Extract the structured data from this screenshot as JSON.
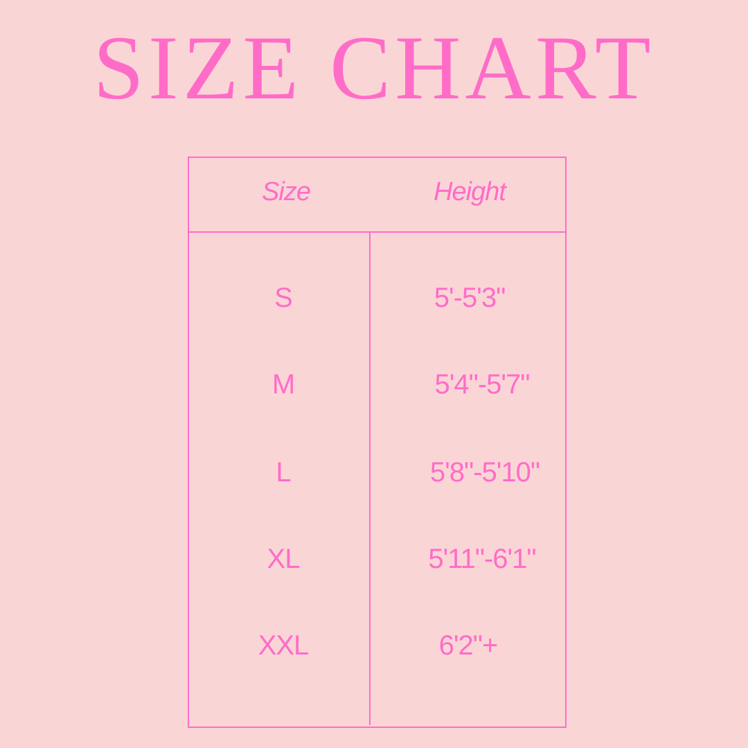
{
  "title": "SIZE CHART",
  "colors": {
    "background": "#fad5d6",
    "accent": "#ff6cc8"
  },
  "table": {
    "headers": [
      "Size",
      "Height"
    ],
    "rows": [
      {
        "size": "S",
        "height": "5'-5'3\""
      },
      {
        "size": "M",
        "height": "5'4\"-5'7\""
      },
      {
        "size": "L",
        "height": "5'8\"-5'10\""
      },
      {
        "size": "XL",
        "height": "5'11\"-6'1\""
      },
      {
        "size": "XXL",
        "height": "6'2\"+"
      }
    ]
  }
}
